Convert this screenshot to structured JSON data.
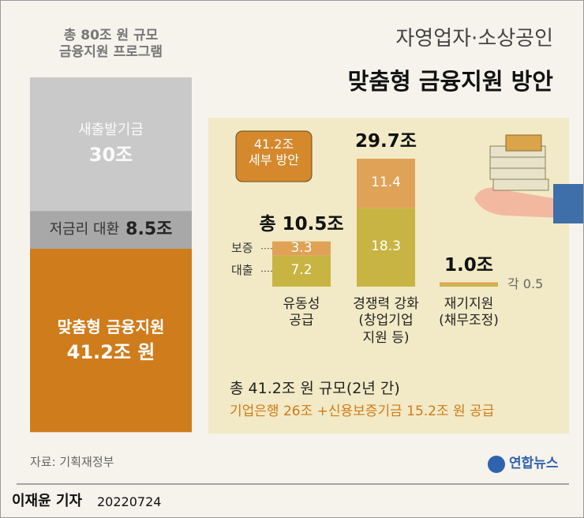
{
  "header": {
    "title": "자영업자·소상공인",
    "subtitle": "맞춤형 금융지원 방안"
  },
  "chart_data": [
    {
      "type": "stacked-column",
      "title": "총 80조 원 규모\n금융지원 프로그램",
      "categories": [
        "새출발기금",
        "저금리 대환",
        "맞춤형 금융지원"
      ],
      "values": [
        30,
        8.5,
        41.2
      ],
      "value_labels": [
        "30조",
        "8.5조",
        "41.2조 원"
      ],
      "colors": [
        "#c9c9c9",
        "#a8a8a8",
        "#cf7c1c"
      ],
      "ylim": [
        0,
        80
      ]
    },
    {
      "type": "bar",
      "stacked": true,
      "badge": "41.2조\n세부 방안",
      "categories": [
        "유동성\n공급",
        "경쟁력 강화\n(창업기업\n지원 등)",
        "재기지원\n(채무조정)"
      ],
      "series": [
        {
          "name": "대출",
          "color": "#c8b443",
          "values": [
            7.2,
            18.3,
            0.5
          ]
        },
        {
          "name": "보증",
          "color": "#e0a256",
          "values": [
            3.3,
            11.4,
            0.5
          ]
        }
      ],
      "totals": {
        "values": [
          10.5,
          29.7,
          1.0
        ],
        "value_labels": [
          "총 10.5조",
          "29.7조",
          "1.0조"
        ]
      },
      "annotation": "각 0.5",
      "ylim": [
        0,
        30
      ]
    }
  ],
  "footer": {
    "summary": "총 41.2조 원 규모(2년 간)",
    "detail": "기업은행 26조 +신용보증기금 15.2조 원 공급"
  },
  "source": "자료: 기획재정부",
  "logo": "연합뉴스",
  "byline": {
    "author": "이재윤 기자",
    "date": "20220724"
  }
}
